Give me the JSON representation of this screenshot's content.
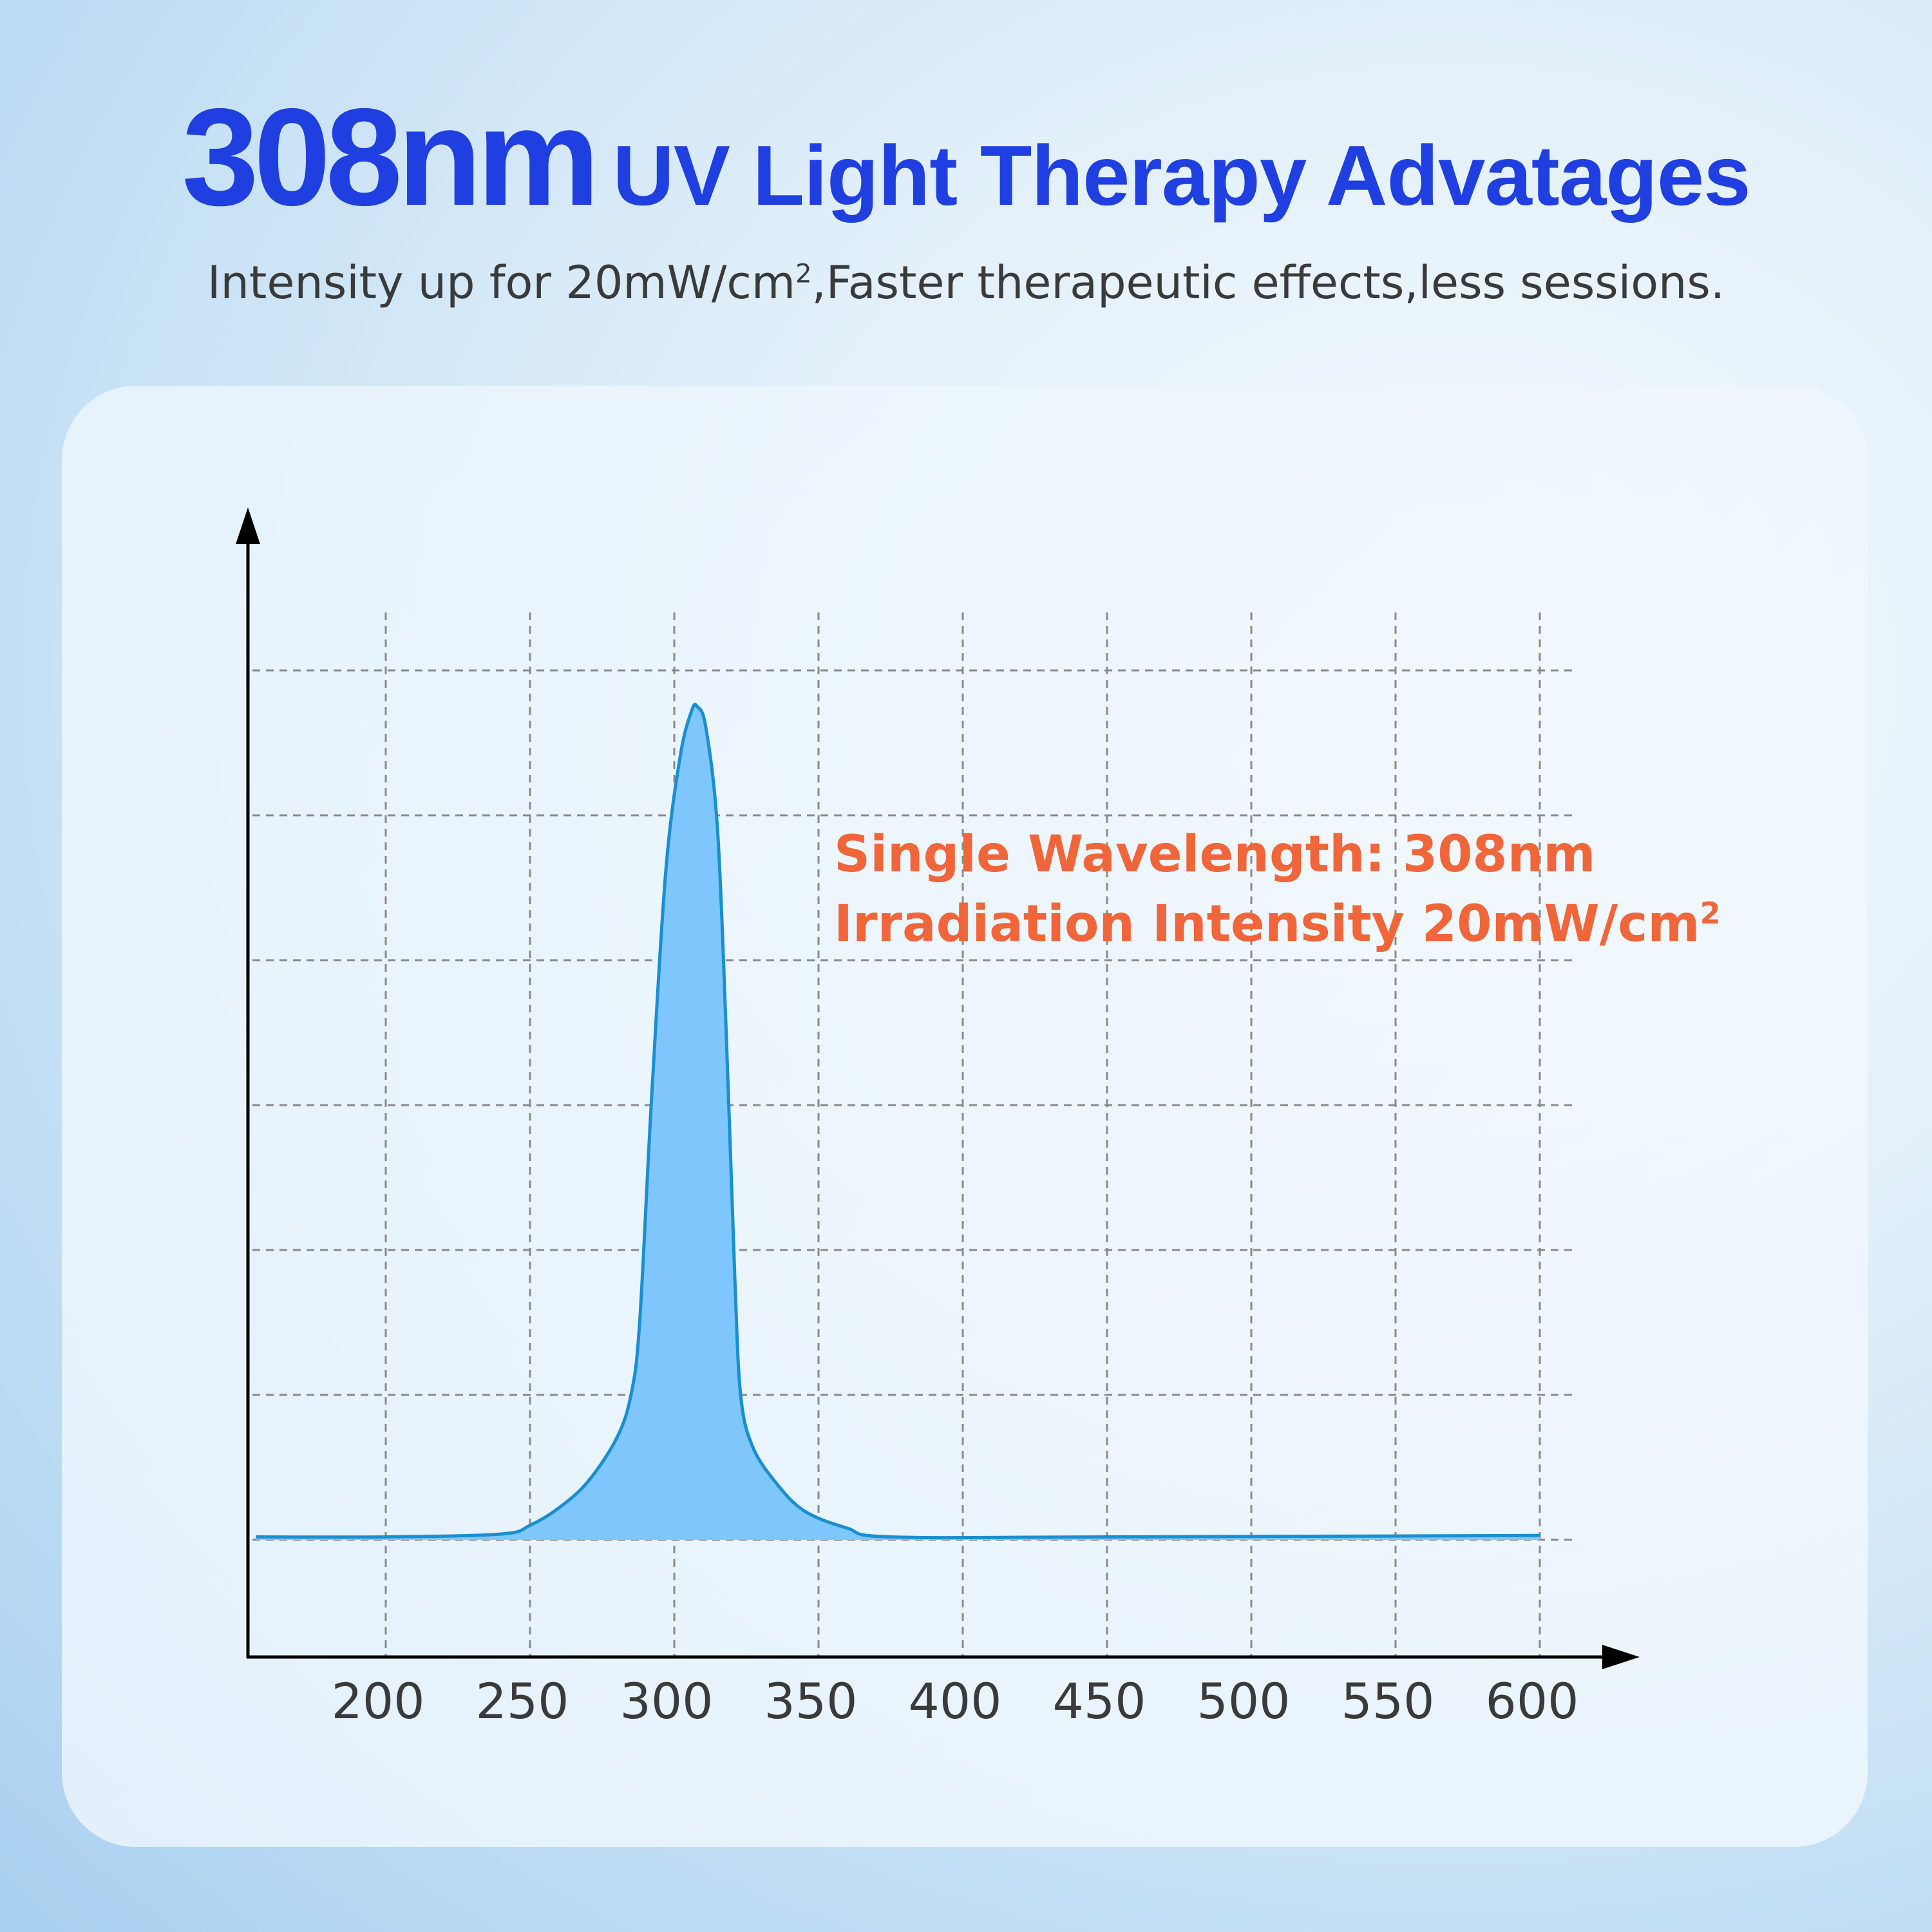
{
  "header": {
    "title_big": "308nm",
    "title_rest": "UV Light Therapy Advatages",
    "subtitle_a": "Intensity up for 20mW/cm",
    "subtitle_sup": "2",
    "subtitle_b": ",Faster therapeutic effects,less sessions."
  },
  "colors": {
    "title": "#1f3fe0",
    "annotation": "#f0653a",
    "curve_stroke": "#1a8fd0",
    "curve_fill": "#7ec6fb",
    "grid": "#8a8a8a"
  },
  "chart_data": {
    "type": "area",
    "title": "",
    "xlabel": "",
    "ylabel": "",
    "x_ticks": [
      "200",
      "250",
      "300",
      "350",
      "400",
      "450",
      "500",
      "550",
      "600"
    ],
    "xlim": [
      152,
      600
    ],
    "ylim": [
      0,
      6
    ],
    "grid": true,
    "y_tick_labels_shown": false,
    "annotations": [
      {
        "text": "Single Wavelength:  308nm"
      },
      {
        "text": "Irradiation Intensity 20mW/cm",
        "sup": "2"
      }
    ],
    "series": [
      {
        "x": [
          155,
          200,
          240,
          250,
          260,
          270,
          280,
          285,
          288,
          292,
          297,
          302,
          306,
          308,
          311,
          315,
          318,
          321,
          323,
          327,
          335,
          345,
          360,
          375,
          450,
          600
        ],
        "y": [
          0.02,
          0.02,
          0.04,
          0.1,
          0.22,
          0.4,
          0.7,
          1.0,
          1.5,
          3.0,
          4.6,
          5.4,
          5.72,
          5.75,
          5.6,
          4.9,
          3.5,
          1.8,
          1.0,
          0.65,
          0.4,
          0.2,
          0.08,
          0.02,
          0.02,
          0.03
        ]
      }
    ]
  }
}
